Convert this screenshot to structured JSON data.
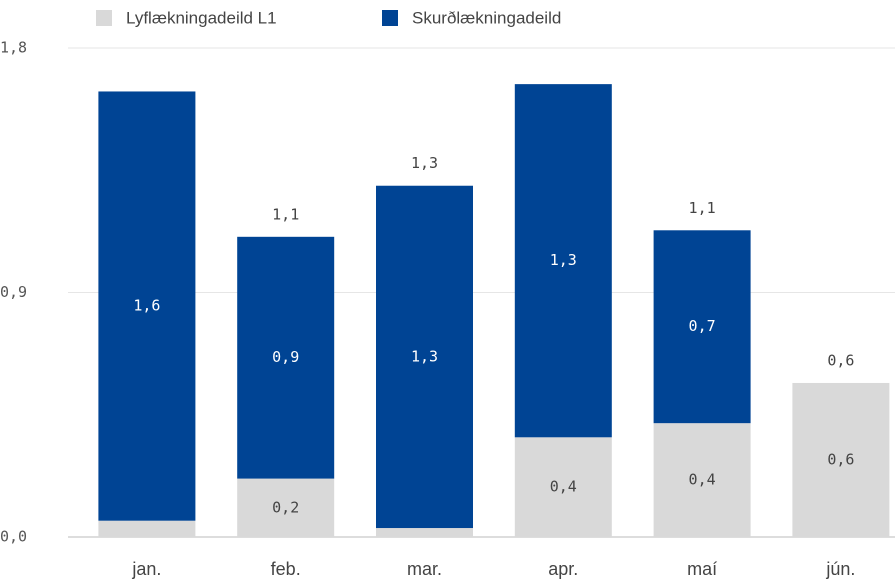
{
  "chart_data": {
    "type": "stacked_bar",
    "categories": [
      "jan.",
      "feb.",
      "mar.",
      "apr.",
      "maí",
      "jún."
    ],
    "series": [
      {
        "name": "Lyflækningadeild L1",
        "color": "#d9d9d9",
        "values": [
          0.06,
          0.215,
          0.033,
          0.367,
          0.419,
          0.567
        ],
        "value_labels": [
          null,
          "0,2",
          null,
          "0,4",
          "0,4",
          "0,6"
        ]
      },
      {
        "name": "Skurðlækningadeild",
        "color": "#004494",
        "values": [
          1.58,
          0.89,
          1.26,
          1.3,
          0.71,
          null
        ],
        "value_labels": [
          "1,6",
          "0,9",
          "1,3",
          "1,3",
          "0,7",
          null
        ]
      }
    ],
    "total_labels": [
      null,
      "1,1",
      "1,3",
      null,
      "1,1",
      "0,6"
    ],
    "ylim": [
      0,
      1.8
    ],
    "yticks": [
      {
        "value": 0,
        "label": "0,0"
      },
      {
        "value": 0.9,
        "label": "0,9"
      },
      {
        "value": 1.8,
        "label": "1,8"
      }
    ],
    "grid": true
  }
}
